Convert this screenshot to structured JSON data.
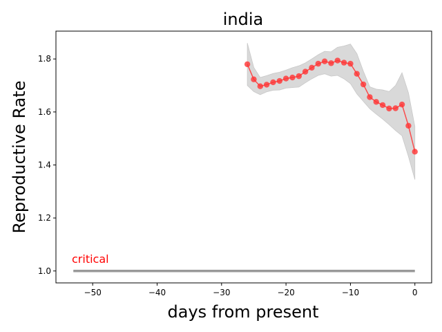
{
  "chart_data": {
    "type": "line",
    "title": "india",
    "xlabel": "days from present",
    "ylabel": "Reproductive Rate",
    "xlim": [
      -55.7,
      2.6
    ],
    "ylim": [
      0.955,
      1.905
    ],
    "xticks": [
      -50,
      -40,
      -30,
      -20,
      -10,
      0
    ],
    "xtick_labels": [
      "−50",
      "−40",
      "−30",
      "−20",
      "−10",
      "0"
    ],
    "yticks": [
      1.0,
      1.2,
      1.4,
      1.6,
      1.8
    ],
    "ytick_labels": [
      "1.0",
      "1.2",
      "1.4",
      "1.6",
      "1.8"
    ],
    "grid": false,
    "series": [
      {
        "kind": "line_with_markers",
        "color": "#ff3333",
        "x": [
          -26,
          -25,
          -24,
          -23,
          -22,
          -21,
          -20,
          -19,
          -18,
          -17,
          -16,
          -15,
          -14,
          -13,
          -12,
          -11,
          -10,
          -9,
          -8,
          -7,
          -6,
          -5,
          -4,
          -3,
          -2,
          -1,
          0
        ],
        "y": [
          1.78,
          1.723,
          1.697,
          1.703,
          1.712,
          1.717,
          1.726,
          1.73,
          1.735,
          1.752,
          1.767,
          1.782,
          1.791,
          1.784,
          1.794,
          1.786,
          1.782,
          1.744,
          1.704,
          1.656,
          1.638,
          1.626,
          1.613,
          1.614,
          1.628,
          1.548,
          1.45
        ]
      }
    ],
    "band": {
      "kind": "confidence_band",
      "color": "#d9d9d9",
      "x": [
        -26,
        -25,
        -24,
        -23,
        -22,
        -21,
        -20,
        -19,
        -18,
        -17,
        -16,
        -15,
        -14,
        -13,
        -12,
        -11,
        -10,
        -9,
        -8,
        -7,
        -6,
        -5,
        -4,
        -3,
        -2,
        -1,
        0
      ],
      "upper": [
        1.86,
        1.768,
        1.73,
        1.737,
        1.745,
        1.75,
        1.758,
        1.767,
        1.774,
        1.785,
        1.8,
        1.816,
        1.829,
        1.827,
        1.844,
        1.849,
        1.856,
        1.82,
        1.754,
        1.695,
        1.686,
        1.683,
        1.677,
        1.7,
        1.748,
        1.672,
        1.545
      ],
      "lower": [
        1.7,
        1.677,
        1.665,
        1.676,
        1.682,
        1.683,
        1.69,
        1.692,
        1.694,
        1.71,
        1.725,
        1.738,
        1.744,
        1.735,
        1.738,
        1.725,
        1.707,
        1.668,
        1.64,
        1.612,
        1.592,
        1.573,
        1.552,
        1.53,
        1.51,
        1.432,
        1.345
      ]
    },
    "reference_line": {
      "y": 1.0,
      "x_start": -53,
      "x_end": 0,
      "color": "#999999",
      "label": "critical",
      "label_color": "#ff0000"
    }
  }
}
